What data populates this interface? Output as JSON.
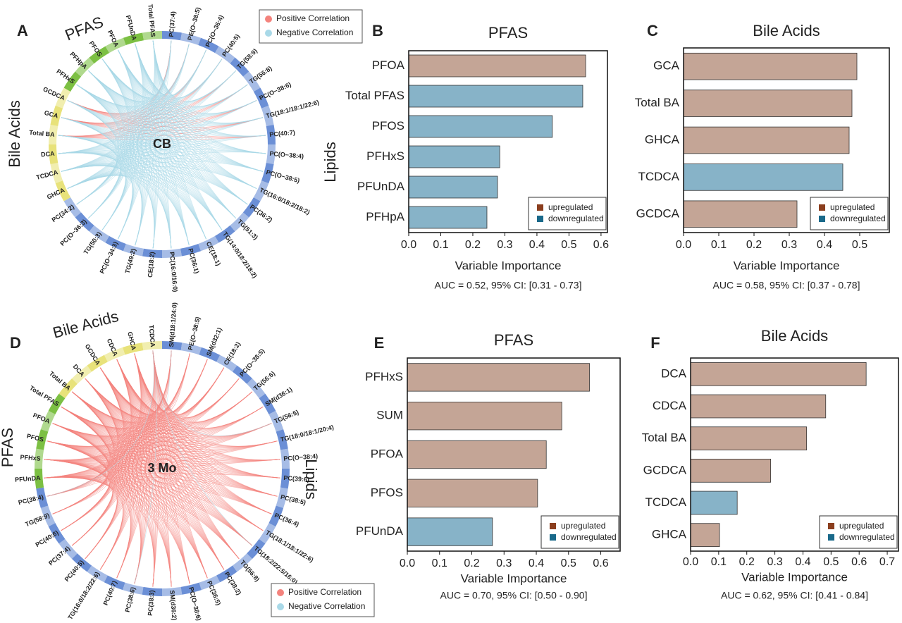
{
  "chart_data": [
    {
      "type": "chord",
      "panel": "A",
      "center_label": "CB",
      "series": [
        {
          "name": "Positive Correlation",
          "color": "#f4837d"
        },
        {
          "name": "Negative Correlation",
          "color": "#a9d9e8"
        }
      ],
      "groups": [
        {
          "name": "Lipids",
          "color": "#6b8fd6",
          "nodes": [
            "PC(37:4)",
            "PE(O−38:5)",
            "PC(O−36:4)",
            "PC(40:5)",
            "TG(58:9)",
            "TG(56:8)",
            "PC(O−38:6)",
            "TG(18:1/18:1/22:6)",
            "PC(40:7)",
            "PC(O−38:4)",
            "PC(O−38:5)",
            "TG(16:0/18:2/18:2)",
            "PC(36:2)",
            "TG(51:3)",
            "TG(14:0/18:2/18:2)",
            "CE(18:1)",
            "PC(36:1)",
            "PC(16:0/16:0)",
            "CE(18:2)",
            "TG(49:2)",
            "PC(O−34:3)",
            "TG(50:3)",
            "PC(O−36:3)",
            "PC(34:2)"
          ]
        },
        {
          "name": "Bile Acids",
          "color": "#e8e27a",
          "nodes": [
            "GHCA",
            "TCDCA",
            "DCA",
            "Total BA",
            "GCA",
            "GCDCA"
          ]
        },
        {
          "name": "PFAS",
          "color": "#7cc043",
          "nodes": [
            "PFHxS",
            "PFHpA",
            "PFOS",
            "PFOA",
            "PFUnDA",
            "Total PFAS"
          ]
        }
      ]
    },
    {
      "type": "bar",
      "panel": "B",
      "title": "PFAS",
      "xlabel": "Variable Importance",
      "note": "AUC = 0.52, 95% CI: [0.31 - 0.73]",
      "categories": [
        "PFOA",
        "Total PFAS",
        "PFOS",
        "PFHxS",
        "PFUnDA",
        "PFHpA"
      ],
      "values": [
        0.552,
        0.543,
        0.448,
        0.284,
        0.277,
        0.244
      ],
      "colors": [
        "#c4a596",
        "#87b3c8",
        "#87b3c8",
        "#87b3c8",
        "#87b3c8",
        "#87b3c8"
      ],
      "series": [
        {
          "name": "upregulated",
          "color": "#8b3e1e"
        },
        {
          "name": "downregulated",
          "color": "#19698a"
        }
      ],
      "xlim": [
        0,
        0.62
      ],
      "xticks": [
        {
          "value": 0,
          "label": "0.0"
        },
        0.1,
        0.2,
        0.3,
        0.4,
        0.5,
        0.6
      ]
    },
    {
      "type": "bar",
      "panel": "C",
      "title": "Bile Acids",
      "xlabel": "Variable Importance",
      "note": "AUC = 0.58, 95% CI: [0.37 - 0.78]",
      "categories": [
        "GCA",
        "Total BA",
        "GHCA",
        "TCDCA",
        "GCDCA"
      ],
      "values": [
        0.492,
        0.478,
        0.47,
        0.452,
        0.322
      ],
      "colors": [
        "#c4a596",
        "#c4a596",
        "#c4a596",
        "#87b3c8",
        "#c4a596"
      ],
      "series": [
        {
          "name": "upregulated",
          "color": "#8b3e1e"
        },
        {
          "name": "downregulated",
          "color": "#19698a"
        }
      ],
      "xlim": [
        0,
        0.584
      ],
      "xticks": [
        {
          "value": 0,
          "label": "0.0"
        },
        0.1,
        0.2,
        0.3,
        0.4,
        0.5
      ]
    },
    {
      "type": "chord",
      "panel": "D",
      "center_label": "3 Mo",
      "series": [
        {
          "name": "Positive Correlation",
          "color": "#f4837d"
        },
        {
          "name": "Negative Correlation",
          "color": "#a9d9e8"
        }
      ],
      "groups": [
        {
          "name": "Lipids",
          "color": "#6b8fd6",
          "nodes": [
            "SM(d18:1/24:0)",
            "PE(O−38:5)",
            "SM(d32:1)",
            "CE(18:2)",
            "PC(O−38:5)",
            "TG(56:6)",
            "SM(d36:1)",
            "TG(56:5)",
            "TG(18:0/18:1/20:4)",
            "PC(O−38:4)",
            "PC(39:6)",
            "PC(38:5)",
            "PC(36:4)",
            "TG(18:1/18:1/22:6)",
            "TG(18:2/22:5/16:0)",
            "TG(56:8)",
            "PC(38:2)",
            "PC(36:5)",
            "PC(O−38:6)",
            "SM(d36:2)",
            "PC(38:3)",
            "PC(38:6)",
            "PC(40:7)",
            "TG(16:0/18:2/22:6)",
            "PC(40:5)",
            "PC(37:4)",
            "PC(40:6)",
            "TG(58:9)",
            "PC(38:4)"
          ]
        },
        {
          "name": "PFAS",
          "color": "#7cc043",
          "nodes": [
            "PFUnDA",
            "PFHxS",
            "PFOS",
            "PFOA",
            "Total PFAS"
          ]
        },
        {
          "name": "Bile Acids",
          "color": "#e8e27a",
          "nodes": [
            "Total BA",
            "DCA",
            "GCDCA",
            "CDCA",
            "GHCA",
            "TCDCA"
          ]
        }
      ]
    },
    {
      "type": "bar",
      "panel": "E",
      "title": "PFAS",
      "xlabel": "Variable Importance",
      "note": "AUC = 0.70, 95% CI: [0.50 - 0.90]",
      "categories": [
        "PFHxS",
        "SUM",
        "PFOA",
        "PFOS",
        "PFUnDA"
      ],
      "values": [
        0.565,
        0.479,
        0.431,
        0.404,
        0.264
      ],
      "colors": [
        "#c4a596",
        "#c4a596",
        "#c4a596",
        "#c4a596",
        "#87b3c8"
      ],
      "series": [
        {
          "name": "upregulated",
          "color": "#8b3e1e"
        },
        {
          "name": "downregulated",
          "color": "#19698a"
        }
      ],
      "xlim": [
        0,
        0.66
      ],
      "xticks": [
        {
          "value": 0,
          "label": "0.0"
        },
        0.1,
        0.2,
        0.3,
        0.4,
        0.5,
        0.6
      ]
    },
    {
      "type": "bar",
      "panel": "F",
      "title": "Bile Acids",
      "xlabel": "Variable Importance",
      "note": "AUC = 0.62, 95% CI: [0.41 - 0.84]",
      "categories": [
        "DCA",
        "CDCA",
        "Total BA",
        "GCDCA",
        "TCDCA",
        "GHCA"
      ],
      "values": [
        0.625,
        0.481,
        0.413,
        0.285,
        0.166,
        0.103
      ],
      "colors": [
        "#c4a596",
        "#c4a596",
        "#c4a596",
        "#c4a596",
        "#87b3c8",
        "#c4a596"
      ],
      "series": [
        {
          "name": "upregulated",
          "color": "#8b3e1e"
        },
        {
          "name": "downregulated",
          "color": "#19698a"
        }
      ],
      "xlim": [
        0,
        0.74
      ],
      "xticks": [
        {
          "value": 0,
          "label": "0.0"
        },
        0.1,
        0.2,
        0.3,
        0.4,
        0.5,
        0.6,
        0.7
      ]
    }
  ]
}
